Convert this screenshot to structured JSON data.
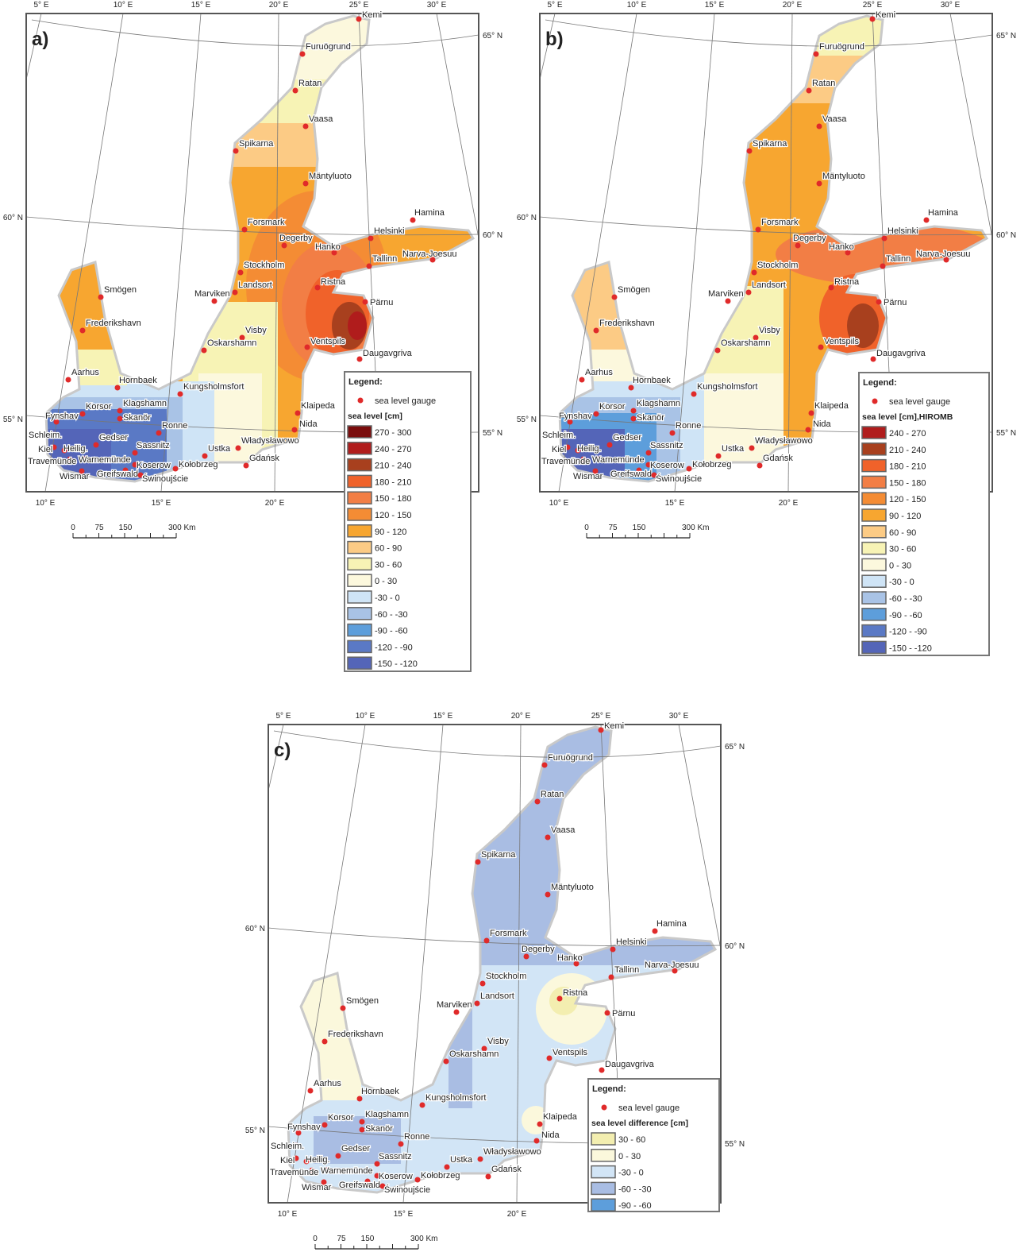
{
  "panels": [
    {
      "label": "a)",
      "legend": {
        "title": "Legend:",
        "gauge_label": "sea level gauge",
        "variable": "sea level [cm]",
        "classes": [
          {
            "range": "270 - 300",
            "color": "#7a0c0c"
          },
          {
            "range": "240 - 270",
            "color": "#b01c1c"
          },
          {
            "range": "210 - 240",
            "color": "#a8401e"
          },
          {
            "range": "180 - 210",
            "color": "#f0622a"
          },
          {
            "range": "150 - 180",
            "color": "#f27e45"
          },
          {
            "range": "120 - 150",
            "color": "#f48c34"
          },
          {
            "range": "90 - 120",
            "color": "#f7a630"
          },
          {
            "range": "60 - 90",
            "color": "#fccb85"
          },
          {
            "range": "30 - 60",
            "color": "#f7f3b5"
          },
          {
            "range": "0 - 30",
            "color": "#fcf8dd"
          },
          {
            "range": "-30 - 0",
            "color": "#cfe4f6"
          },
          {
            "range": "-60 - -30",
            "color": "#a9c3e6"
          },
          {
            "range": "-90 - -60",
            "color": "#5d9edb"
          },
          {
            "range": "-120 - -90",
            "color": "#5a79c5"
          },
          {
            "range": "-150 - -120",
            "color": "#5465b8"
          }
        ]
      }
    },
    {
      "label": "b)",
      "legend": {
        "title": "Legend:",
        "gauge_label": "sea level gauge",
        "variable": "sea level [cm],HIROMB",
        "classes": [
          {
            "range": "240 - 270",
            "color": "#b01c1c"
          },
          {
            "range": "210 - 240",
            "color": "#a8401e"
          },
          {
            "range": "180 - 210",
            "color": "#f0622a"
          },
          {
            "range": "150 - 180",
            "color": "#f27e45"
          },
          {
            "range": "120 - 150",
            "color": "#f48c34"
          },
          {
            "range": "90 - 120",
            "color": "#f7a630"
          },
          {
            "range": "60 - 90",
            "color": "#fccb85"
          },
          {
            "range": "30 - 60",
            "color": "#f7f3b5"
          },
          {
            "range": "0 - 30",
            "color": "#fcf8dd"
          },
          {
            "range": "-30 - 0",
            "color": "#cfe4f6"
          },
          {
            "range": "-60 - -30",
            "color": "#a9c3e6"
          },
          {
            "range": "-90 - -60",
            "color": "#5d9edb"
          },
          {
            "range": "-120 - -90",
            "color": "#5a79c5"
          },
          {
            "range": "-150 - -120",
            "color": "#5465b8"
          }
        ]
      }
    },
    {
      "label": "c)",
      "legend": {
        "title": "Legend:",
        "gauge_label": "sea level gauge",
        "variable": "sea level difference [cm]",
        "classes": [
          {
            "range": "30 - 60",
            "color": "#f3eeb0"
          },
          {
            "range": "0 - 30",
            "color": "#fbf8dc"
          },
          {
            "range": "-30 - 0",
            "color": "#d2e5f6"
          },
          {
            "range": "-60 - -30",
            "color": "#a9bde3"
          },
          {
            "range": "-90 - -60",
            "color": "#5d9edb"
          }
        ]
      }
    }
  ],
  "stations": [
    "Kemi",
    "Furuögrund",
    "Ratan",
    "Vaasa",
    "Spikarna",
    "Mäntyluoto",
    "Forsmark",
    "Degerby",
    "Hanko",
    "Helsinki",
    "Hamina",
    "Tallinn",
    "Narva-Joesuu",
    "Stockholm",
    "Landsort",
    "Ristna",
    "Pärnu",
    "Marviken",
    "Smögen",
    "Frederikshavn",
    "Visby",
    "Oskarshamn",
    "Ventspils",
    "Daugavgriva",
    "Aarhus",
    "Hornbaek",
    "Kungsholmsfort",
    "Klagshamn",
    "Korsor",
    "Fynshav",
    "Skanör",
    "Klaipeda",
    "Nida",
    "Schleim.",
    "Ronne",
    "Gedser",
    "Heilig.",
    "Kiel",
    "Sassnitz",
    "Władysławowo",
    "Ustka",
    "Travemünde",
    "Warnemünde",
    "Koserow",
    "Kołobrzeg",
    "Gdańsk",
    "Wismar",
    "Greifswald",
    "Świnoujście"
  ],
  "graticule": {
    "top_lon": [
      "5° E",
      "10° E",
      "15° E",
      "20° E",
      "25° E",
      "30° E"
    ],
    "bottom_lon": [
      "10° E",
      "15° E",
      "20° E"
    ],
    "left_lat": [
      "60° N",
      "55° N"
    ],
    "right_lat": [
      "65° N",
      "60° N",
      "55° N"
    ]
  },
  "scale_bar": {
    "ticks": [
      "0",
      "75",
      "150",
      "300 Km"
    ]
  },
  "colors": {
    "gauge": "#e02a2a",
    "land": "#c9c9c9",
    "frame": "#555555"
  }
}
